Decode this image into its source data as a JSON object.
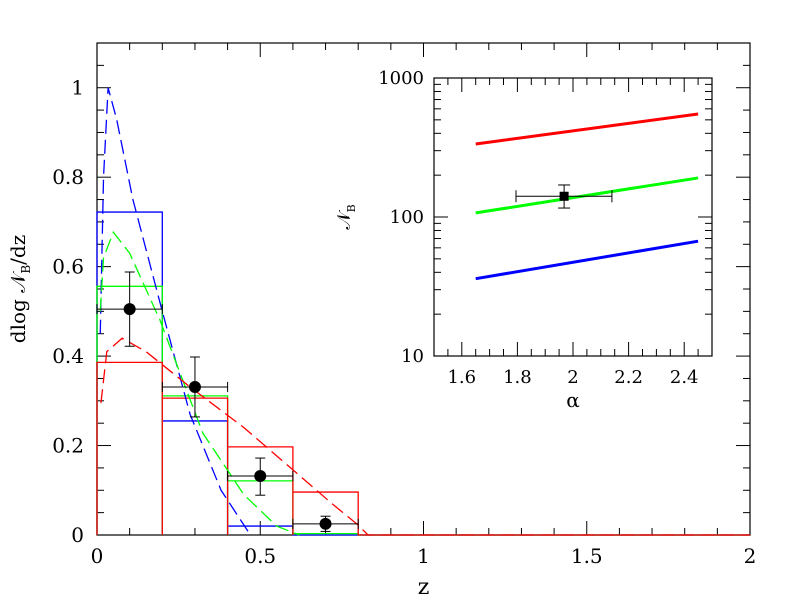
{
  "chart_data": [
    {
      "type": "line",
      "xlabel": "z",
      "ylabel_main": "dlog 𝒩",
      "ylabel_sub": "B",
      "ylabel_tail": "/dz",
      "xlim": [
        0,
        2
      ],
      "ylim": [
        0,
        1.1
      ],
      "xticks": [
        "0",
        "0.5",
        "1",
        "1.5",
        "2"
      ],
      "yticks": [
        "0",
        "0.2",
        "0.4",
        "0.6",
        "0.8",
        "1"
      ],
      "grid": false,
      "colors": {
        "blue": "#0000ff",
        "green": "#00ff00",
        "red": "#ff0000",
        "data": "#000000"
      },
      "histograms": [
        {
          "color": "blue",
          "bin_edges": [
            0,
            0.2,
            0.4,
            0.6,
            0.8,
            2
          ],
          "values": [
            0.722,
            0.255,
            0.02,
            0,
            0
          ]
        },
        {
          "color": "green",
          "bin_edges": [
            0,
            0.2,
            0.4,
            0.6,
            0.8,
            2
          ],
          "values": [
            0.556,
            0.311,
            0.121,
            0.003,
            0
          ]
        },
        {
          "color": "red",
          "bin_edges": [
            0,
            0.2,
            0.4,
            0.6,
            0.8,
            2
          ],
          "values": [
            0.386,
            0.306,
            0.197,
            0.096,
            0
          ]
        }
      ],
      "curves": [
        {
          "color": "blue",
          "style": "dashed",
          "x": [
            0.01,
            0.02,
            0.034,
            0.06,
            0.11,
            0.2,
            0.285,
            0.38,
            0.47
          ],
          "y": [
            0.45,
            0.8,
            1.0,
            0.93,
            0.75,
            0.5,
            0.27,
            0.1,
            0
          ]
        },
        {
          "color": "green",
          "style": "dashed",
          "x": [
            0.01,
            0.02,
            0.05,
            0.1,
            0.193,
            0.324,
            0.45,
            0.55,
            0.62
          ],
          "y": [
            0.5,
            0.62,
            0.677,
            0.63,
            0.48,
            0.228,
            0.09,
            0.02,
            0
          ]
        },
        {
          "color": "red",
          "style": "dashed",
          "x": [
            0.012,
            0.03,
            0.077,
            0.15,
            0.285,
            0.45,
            0.59,
            0.72,
            0.8,
            0.83,
            2
          ],
          "y": [
            0.295,
            0.41,
            0.44,
            0.41,
            0.331,
            0.24,
            0.152,
            0.07,
            0.022,
            0,
            0
          ]
        }
      ],
      "data_points": [
        {
          "x": 0.1,
          "y": 0.505,
          "xerr": 0.1,
          "ylo": 0.422,
          "yhi": 0.588
        },
        {
          "x": 0.3,
          "y": 0.331,
          "xerr": 0.1,
          "ylo": 0.264,
          "yhi": 0.398
        },
        {
          "x": 0.5,
          "y": 0.132,
          "xerr": 0.1,
          "ylo": 0.089,
          "yhi": 0.172
        },
        {
          "x": 0.7,
          "y": 0.025,
          "xerr": 0.1,
          "ylo": 0.008,
          "yhi": 0.042
        }
      ]
    },
    {
      "type": "line",
      "xlabel": "α",
      "ylabel_main": "𝒩",
      "ylabel_sub": "B",
      "xlim": [
        1.5,
        2.5
      ],
      "ylim": [
        10,
        1000
      ],
      "yscale": "log",
      "xticks": [
        "1.6",
        "1.8",
        "2",
        "2.2",
        "2.4"
      ],
      "yticks": [
        "10",
        "100",
        "1000"
      ],
      "series": [
        {
          "color": "red",
          "x": [
            1.65,
            2.45
          ],
          "y": [
            335,
            551
          ]
        },
        {
          "color": "green",
          "x": [
            1.65,
            2.45
          ],
          "y": [
            107,
            191
          ]
        },
        {
          "color": "blue",
          "x": [
            1.65,
            2.45
          ],
          "y": [
            36,
            67
          ]
        }
      ],
      "data_point": {
        "x": 1.968,
        "y": 141,
        "xlo": 1.795,
        "xhi": 2.14,
        "ylo": 116,
        "yhi": 170
      }
    }
  ]
}
